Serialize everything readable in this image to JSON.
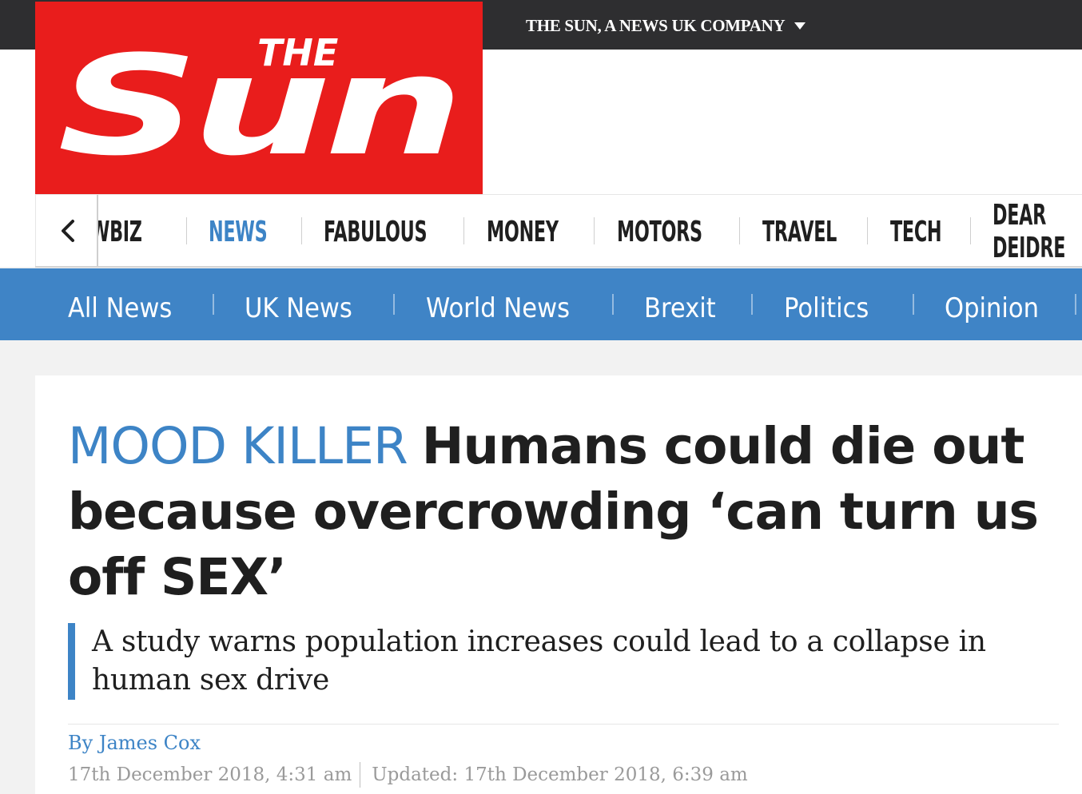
{
  "topbar": {
    "company_label": "THE SUN, A NEWS UK COMPANY"
  },
  "logo": {
    "the": "THE",
    "sun": "Sun",
    "brand_color": "#e91d1c"
  },
  "main_nav": {
    "prev_icon": "chevron-left-icon",
    "items": [
      {
        "label": "SHOWBIZ",
        "active": false
      },
      {
        "label": "NEWS",
        "active": true
      },
      {
        "label": "FABULOUS",
        "active": false
      },
      {
        "label": "MONEY",
        "active": false
      },
      {
        "label": "MOTORS",
        "active": false
      },
      {
        "label": "TRAVEL",
        "active": false
      },
      {
        "label": "TECH",
        "active": false
      },
      {
        "label": "DEAR DEIDRE",
        "active": false
      }
    ]
  },
  "sub_nav": {
    "items": [
      "All News",
      "UK News",
      "World News",
      "Brexit",
      "Politics",
      "Opinion"
    ]
  },
  "article": {
    "kicker": "MOOD KILLER",
    "headline": "Humans could die out because overcrowding ‘can turn us off SEX’",
    "standfirst": "A study warns population increases could lead to a collapse in human sex drive",
    "author": "By James Cox",
    "published": "17th December 2018, 4:31 am",
    "updated": "Updated: 17th December 2018, 6:39 am"
  },
  "colors": {
    "accent_blue": "#3d84c6",
    "topbar": "#2e2e30",
    "text": "#1f1f1f"
  }
}
